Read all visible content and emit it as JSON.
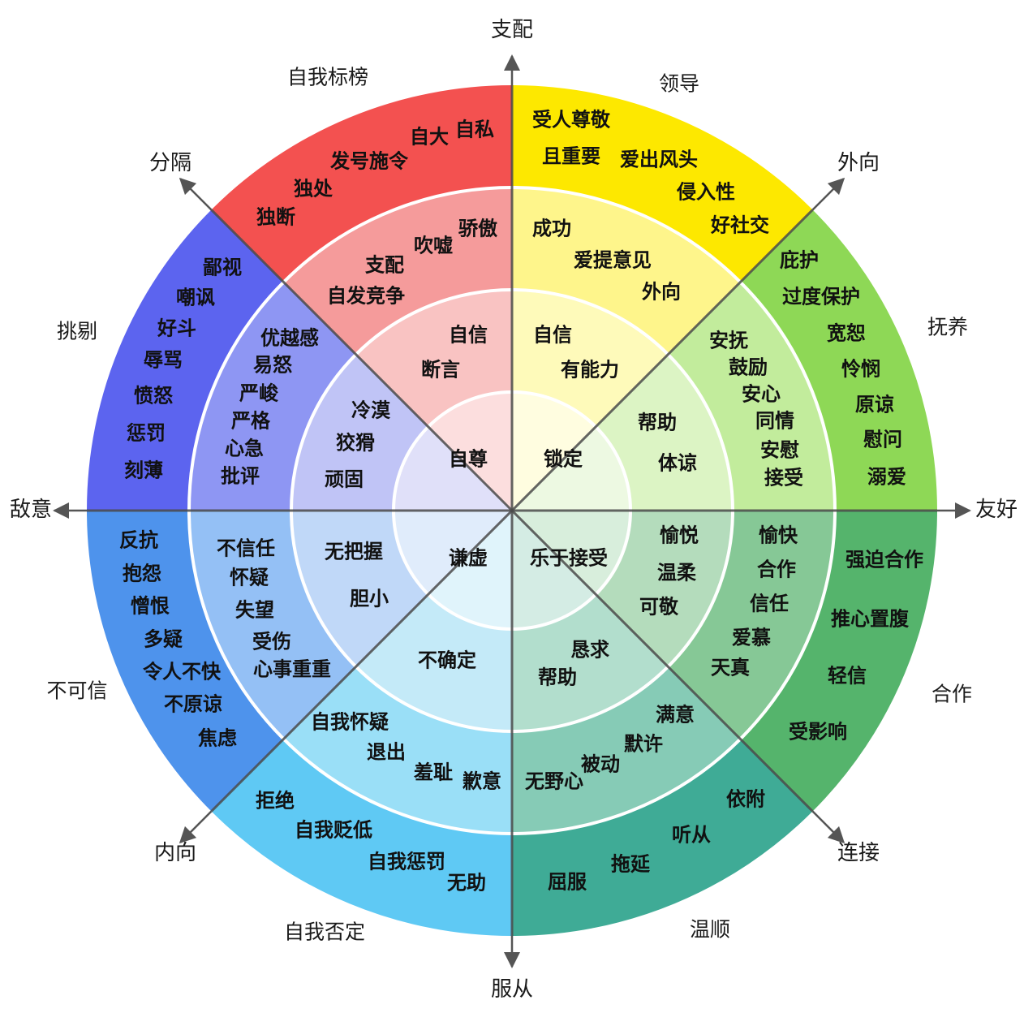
{
  "axes": {
    "top": "支配",
    "bottom": "服从",
    "left": "敌意",
    "right": "友好",
    "upper_right": "外向",
    "upper_left": "分隔",
    "lower_left": "内向",
    "lower_right": "连接"
  },
  "outer_labels": {
    "n_n_w": "自我标榜",
    "n_n_e": "领导",
    "e_n_e": "抚养",
    "e_s_e": "合作",
    "s_s_e": "温顺",
    "s_s_w": "自我否定",
    "w_s_w": "不可信",
    "w_n_w": "挑剔"
  },
  "colors": {
    "nnw": [
      "#f35150",
      "#f59b9b",
      "#f9c3c2",
      "#fcdede"
    ],
    "nne": [
      "#fde800",
      "#fef58b",
      "#fefaba",
      "#fffde0"
    ],
    "ene": [
      "#8ed856",
      "#c2ec9c",
      "#dcf4c4",
      "#edf9e2"
    ],
    "ese": [
      "#55b46c",
      "#86c896",
      "#b4dcbc",
      "#d8eedc"
    ],
    "sse": [
      "#3fab96",
      "#86cbb6",
      "#b2decd",
      "#d4ece4"
    ],
    "ssw": [
      "#5fc9f4",
      "#9adff7",
      "#c4eaf8",
      "#e0f4fb"
    ],
    "wsw": [
      "#4e93ec",
      "#94c0f5",
      "#c0d8f8",
      "#e0ecfb"
    ],
    "wnw": [
      "#5c64ef",
      "#8e96f3",
      "#c0c4f6",
      "#e0e0f9"
    ]
  },
  "cells": {
    "nnw_outer": [
      "自私",
      "自大",
      "发号施令",
      "独处",
      "独断"
    ],
    "nnw_middle": [
      "骄傲",
      "吹嘘",
      "支配",
      "自发竞争"
    ],
    "nnw_inner": [
      "自信",
      "断言"
    ],
    "nnw_core": "自尊",
    "nne_outer": [
      "受人尊敬",
      "且重要",
      "爱出风头",
      "侵入性",
      "好社交"
    ],
    "nne_middle": [
      "成功",
      "爱提意见",
      "外向"
    ],
    "nne_inner": [
      "自信",
      "有能力"
    ],
    "nne_core": "锁定",
    "ene_outer": [
      "庇护",
      "过度保护",
      "宽恕",
      "怜悯",
      "原谅",
      "慰问",
      "溺爱"
    ],
    "ene_middle": [
      "安抚",
      "鼓励",
      "安心",
      "同情",
      "安慰",
      "接受"
    ],
    "ene_inner": [
      "帮助",
      "体谅"
    ],
    "ese_outer": [
      "强迫合作",
      "推心置腹",
      "轻信",
      "受影响"
    ],
    "ese_middle": [
      "愉快",
      "合作",
      "信任",
      "爱慕",
      "天真"
    ],
    "ese_inner": [
      "愉悦",
      "温柔",
      "可敬"
    ],
    "sse_outer": [
      "依附",
      "听从",
      "拖延",
      "屈服"
    ],
    "sse_middle": [
      "满意",
      "默许",
      "被动",
      "无野心"
    ],
    "sse_inner": [
      "恳求",
      "帮助"
    ],
    "sse_core": "乐于接受",
    "ssw_outer": [
      "拒绝",
      "自我贬低",
      "自我惩罚",
      "无助"
    ],
    "ssw_middle": [
      "自我怀疑",
      "退出",
      "羞耻",
      "歉意"
    ],
    "ssw_inner": [
      "不确定"
    ],
    "ssw_core": "谦虚",
    "wsw_outer": [
      "反抗",
      "抱怨",
      "憎恨",
      "多疑",
      "令人不快",
      "不原谅",
      "焦虑"
    ],
    "wsw_middle": [
      "不信任",
      "怀疑",
      "失望",
      "受伤",
      "心事重重"
    ],
    "wsw_inner": [
      "无把握",
      "胆小"
    ],
    "wnw_outer": [
      "鄙视",
      "嘲讽",
      "好斗",
      "辱骂",
      "愤怒",
      "惩罚",
      "刻薄"
    ],
    "wnw_middle": [
      "优越感",
      "易怒",
      "严峻",
      "严格",
      "心急",
      "批评"
    ],
    "wnw_inner": [
      "冷漠",
      "狡猾",
      "顽固"
    ]
  }
}
